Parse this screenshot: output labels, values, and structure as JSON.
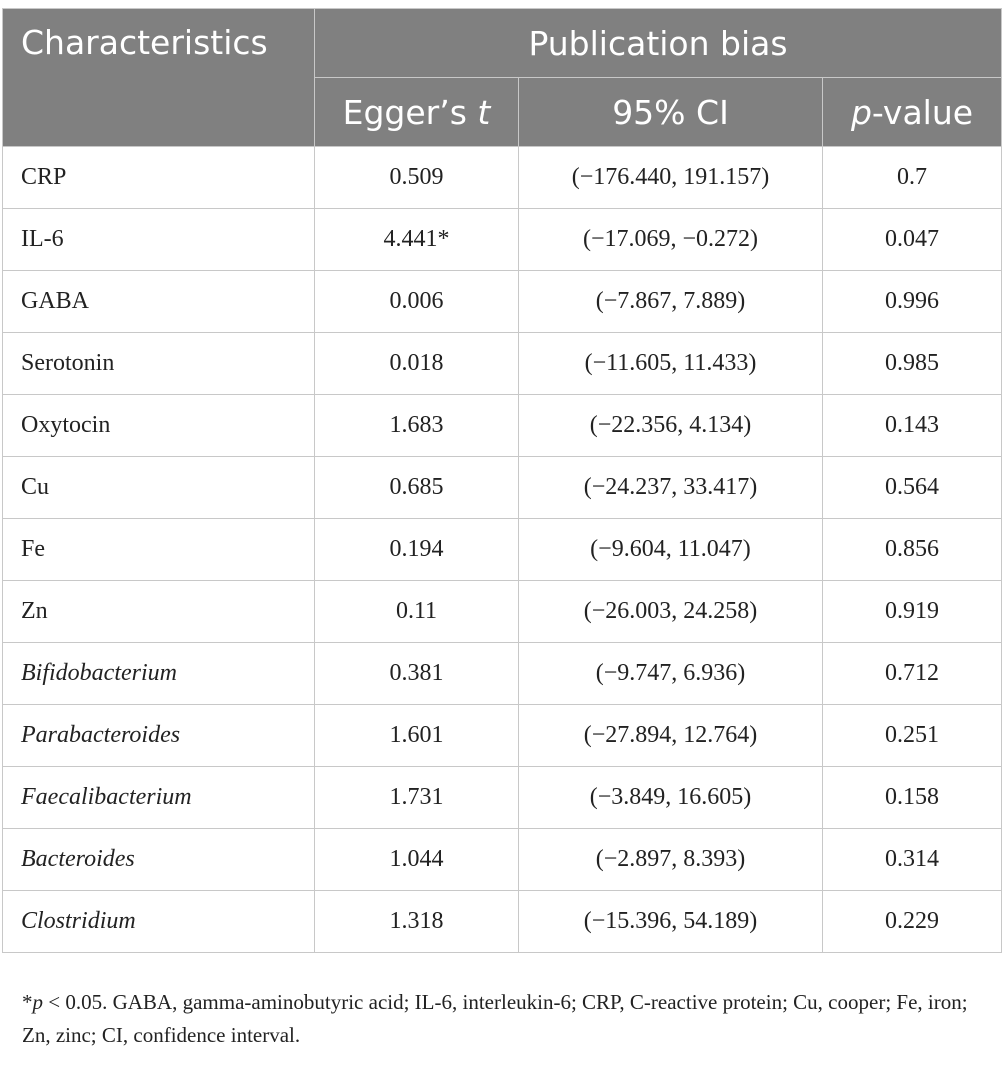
{
  "header": {
    "characteristics": "Characteristics",
    "publication_bias": "Publication bias",
    "egger_main": "Egger’s ",
    "egger_italic": "t",
    "ci": "95% CI",
    "p_italic": "p",
    "p_rest": "-value"
  },
  "rows": [
    {
      "name": "CRP",
      "italic": false,
      "t": "0.509",
      "ci": "(−176.440, 191.157)",
      "p": "0.7"
    },
    {
      "name": "IL-6",
      "italic": false,
      "t": "4.441*",
      "ci": "(−17.069, −0.272)",
      "p": "0.047"
    },
    {
      "name": "GABA",
      "italic": false,
      "t": "0.006",
      "ci": "(−7.867, 7.889)",
      "p": "0.996"
    },
    {
      "name": "Serotonin",
      "italic": false,
      "t": "0.018",
      "ci": "(−11.605, 11.433)",
      "p": "0.985"
    },
    {
      "name": "Oxytocin",
      "italic": false,
      "t": "1.683",
      "ci": "(−22.356, 4.134)",
      "p": "0.143"
    },
    {
      "name": "Cu",
      "italic": false,
      "t": "0.685",
      "ci": "(−24.237, 33.417)",
      "p": "0.564"
    },
    {
      "name": "Fe",
      "italic": false,
      "t": "0.194",
      "ci": "(−9.604, 11.047)",
      "p": "0.856"
    },
    {
      "name": "Zn",
      "italic": false,
      "t": "0.11",
      "ci": "(−26.003, 24.258)",
      "p": "0.919"
    },
    {
      "name": "Bifidobacterium",
      "italic": true,
      "t": "0.381",
      "ci": "(−9.747, 6.936)",
      "p": "0.712"
    },
    {
      "name": "Parabacteroides",
      "italic": true,
      "t": "1.601",
      "ci": "(−27.894, 12.764)",
      "p": "0.251"
    },
    {
      "name": "Faecalibacterium",
      "italic": true,
      "t": "1.731",
      "ci": "(−3.849, 16.605)",
      "p": "0.158"
    },
    {
      "name": "Bacteroides",
      "italic": true,
      "t": "1.044",
      "ci": "(−2.897, 8.393)",
      "p": "0.314"
    },
    {
      "name": "Clostridium",
      "italic": true,
      "t": "1.318",
      "ci": "(−15.396, 54.189)",
      "p": "0.229"
    }
  ],
  "footnote": {
    "star": "*",
    "p_italic": "p",
    "text": " < 0.05. GABA, gamma-aminobutyric acid; IL-6, interleukin-6; CRP, C-reactive protein; Cu, cooper; Fe, iron; Zn, zinc; CI, confidence interval."
  },
  "colors": {
    "header_bg": "#808080",
    "header_text": "#ffffff",
    "border": "#c8c8c8",
    "body_text": "#222222"
  }
}
